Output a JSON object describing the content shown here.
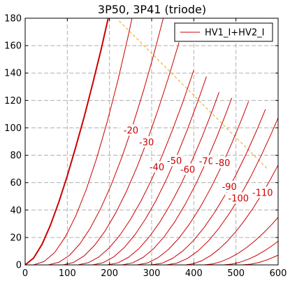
{
  "chart_data": {
    "type": "line",
    "title": "3P50, 3P41 (triode)",
    "xlabel": "",
    "ylabel": "",
    "xlim": [
      0,
      600
    ],
    "ylim": [
      0,
      180
    ],
    "xticks": [
      0,
      100,
      200,
      300,
      400,
      500,
      600
    ],
    "yticks": [
      0,
      20,
      40,
      60,
      80,
      100,
      120,
      140,
      160,
      180
    ],
    "grid": true,
    "legend": {
      "position": "top-right",
      "entries": [
        "HV1_I+HV2_I"
      ]
    },
    "colors": {
      "curve": "#cc0000",
      "load_line": "#f0a020",
      "grid": "#b0b0b0"
    },
    "load_line": {
      "x": [
        223,
        575
      ],
      "y": [
        178,
        70
      ]
    },
    "series": [
      {
        "label": "",
        "bold": true,
        "x": [
          0,
          20,
          40,
          60,
          80,
          100,
          120,
          140,
          160,
          180,
          197
        ],
        "y": [
          0,
          5,
          15,
          29,
          46,
          65,
          86,
          108,
          132,
          157,
          180
        ]
      },
      {
        "label": "",
        "x": [
          20,
          45,
          70,
          95,
          120,
          145,
          170,
          195,
          220,
          245,
          260
        ],
        "y": [
          0,
          2.5,
          9,
          20.3,
          35.7,
          55.1,
          78.2,
          104.8,
          134.7,
          167.9,
          189.5
        ]
      },
      {
        "label": "-20",
        "x": [
          55,
          80,
          105,
          130,
          155,
          180,
          205,
          230,
          255,
          280,
          305,
          330
        ],
        "y": [
          0,
          1.9,
          6.9,
          15.4,
          27.1,
          41.7,
          59.1,
          79.1,
          101.6,
          126.4,
          153.5,
          182.8
        ]
      },
      {
        "label": "-30",
        "x": [
          90,
          115,
          140,
          165,
          190,
          215,
          240,
          265,
          290,
          315,
          340,
          365
        ],
        "y": [
          0,
          1.8,
          6.6,
          14.4,
          24.9,
          38.0,
          53.5,
          71.2,
          91.1,
          113,
          136.8,
          162.4
        ]
      },
      {
        "label": "-40",
        "x": [
          125,
          150,
          175,
          200,
          225,
          250,
          275,
          300,
          325,
          350,
          375,
          400
        ],
        "y": [
          0,
          1.6,
          5.8,
          12.6,
          21.8,
          33.3,
          46.8,
          62.3,
          79.7,
          98.9,
          119.7,
          142.1
        ]
      },
      {
        "label": "-50",
        "x": [
          160,
          185,
          210,
          235,
          260,
          285,
          310,
          335,
          360,
          385,
          410,
          430
        ],
        "y": [
          0,
          1.6,
          5.8,
          12.6,
          21.8,
          33.3,
          46.8,
          62.3,
          79.7,
          98.9,
          119.7,
          137.4
        ]
      },
      {
        "label": "-60",
        "x": [
          195,
          220,
          245,
          270,
          295,
          320,
          345,
          370,
          395,
          420,
          445,
          460
        ],
        "y": [
          0,
          1.5,
          5.5,
          11.9,
          20.7,
          31.5,
          44.4,
          59.1,
          75.6,
          93.7,
          113.4,
          126
        ]
      },
      {
        "label": "-70",
        "x": [
          230,
          255,
          280,
          305,
          330,
          355,
          380,
          405,
          430,
          455,
          480,
          490
        ],
        "y": [
          0,
          1.5,
          5.5,
          11.9,
          20.7,
          31.5,
          44.4,
          59.1,
          75.6,
          93.7,
          113.4,
          121.8
        ]
      },
      {
        "label": "-80",
        "x": [
          265,
          290,
          315,
          340,
          365,
          390,
          415,
          440,
          465,
          490,
          515,
          530
        ],
        "y": [
          0,
          1.4,
          5.2,
          11.3,
          19.6,
          29.9,
          42.0,
          55.9,
          71.5,
          88.7,
          107.4,
          119.4
        ]
      },
      {
        "label": "-90",
        "x": [
          300,
          325,
          350,
          375,
          400,
          425,
          450,
          475,
          500,
          525,
          550,
          570
        ],
        "y": [
          0,
          1.3,
          4.8,
          10.4,
          18.0,
          27.5,
          38.6,
          51.4,
          65.7,
          81.5,
          98.7,
          113.5
        ]
      },
      {
        "label": "-100",
        "x": [
          335,
          360,
          385,
          410,
          435,
          460,
          485,
          510,
          535,
          560,
          585,
          600
        ],
        "y": [
          0,
          1.3,
          4.7,
          10.2,
          17.6,
          26.9,
          37.8,
          50.3,
          64.4,
          79.8,
          96.6,
          107.3
        ]
      },
      {
        "label": "-110",
        "x": [
          380,
          400,
          420,
          440,
          460,
          480,
          500,
          520,
          540,
          560,
          580,
          600
        ],
        "y": [
          0,
          0.9,
          3.2,
          6.8,
          11.6,
          17.4,
          24.4,
          32.3,
          41.1,
          50.8,
          61.4,
          72.9
        ]
      },
      {
        "label": "",
        "x": [
          425,
          445,
          465,
          485,
          505,
          525,
          545,
          565,
          585,
          600
        ],
        "y": [
          0,
          0.7,
          2.4,
          5.0,
          8.4,
          12.6,
          17.6,
          23.2,
          29.5,
          34.7
        ]
      },
      {
        "label": "",
        "x": [
          470,
          490,
          510,
          530,
          550,
          570,
          590,
          600
        ],
        "y": [
          0,
          0.6,
          2.0,
          4.2,
          7.1,
          10.7,
          14.9,
          17.3
        ]
      },
      {
        "label": "",
        "x": [
          515,
          535,
          555,
          575,
          595,
          600
        ],
        "y": [
          0,
          0.5,
          1.8,
          3.8,
          6.4,
          7.1
        ]
      }
    ]
  }
}
